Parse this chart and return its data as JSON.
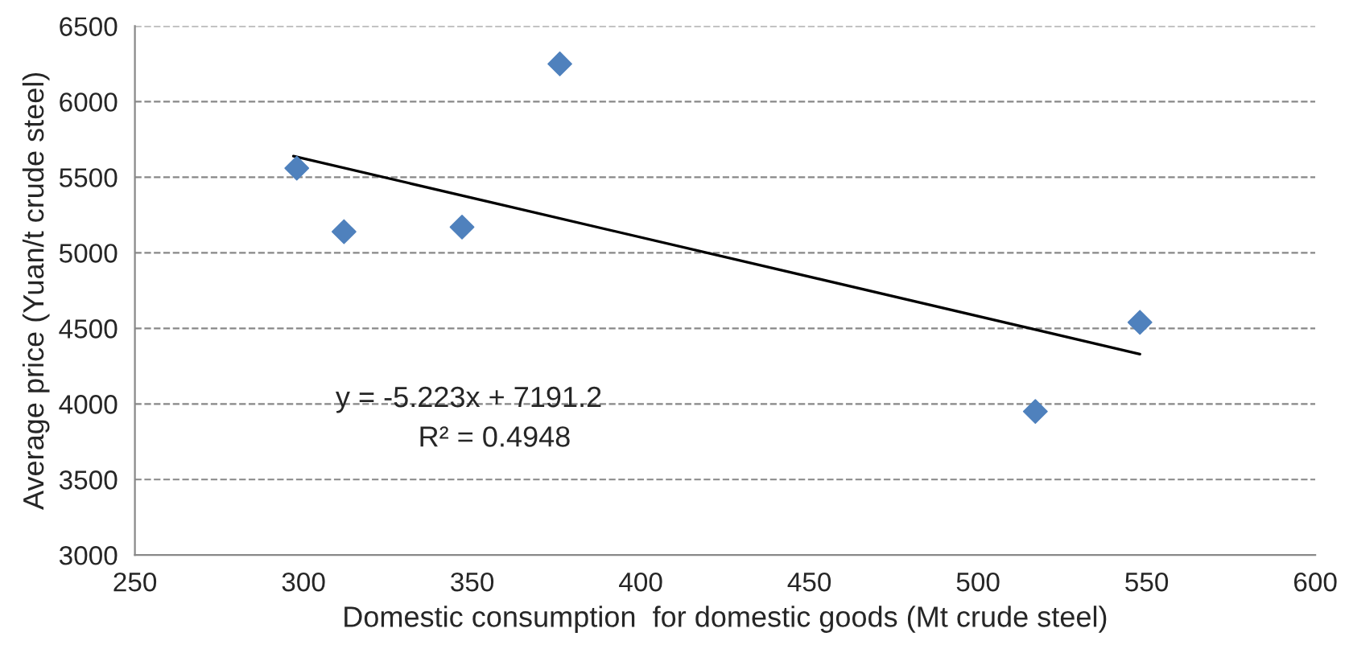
{
  "chart_data": {
    "type": "scatter",
    "xlabel": "Domestic consumption  for domestic goods (Mt crude steel)",
    "ylabel": "Average price (Yuan/t crude steel)",
    "series": [
      {
        "color": "#4f81bd",
        "marker": "diamond",
        "x": [
          298,
          312,
          347,
          376,
          517,
          548
        ],
        "values": [
          5560,
          5140,
          5170,
          6250,
          3950,
          4540
        ]
      },
      {
        "type": "line",
        "color": "#000000",
        "marker": "none",
        "line_style": "solid",
        "x": [
          297,
          548
        ],
        "values": [
          5640,
          4330
        ]
      }
    ],
    "annotations": [
      "y = -5.223x + 7191.2",
      "R² = 0.4948"
    ],
    "xlim": [
      250,
      600
    ],
    "xticks": [
      250,
      300,
      350,
      400,
      450,
      500,
      550,
      600
    ],
    "ylim": [
      3000,
      6500
    ],
    "yticks": [
      3000,
      3500,
      4000,
      4500,
      5000,
      5500,
      6000,
      6500
    ],
    "grid": "y",
    "legend": false
  }
}
